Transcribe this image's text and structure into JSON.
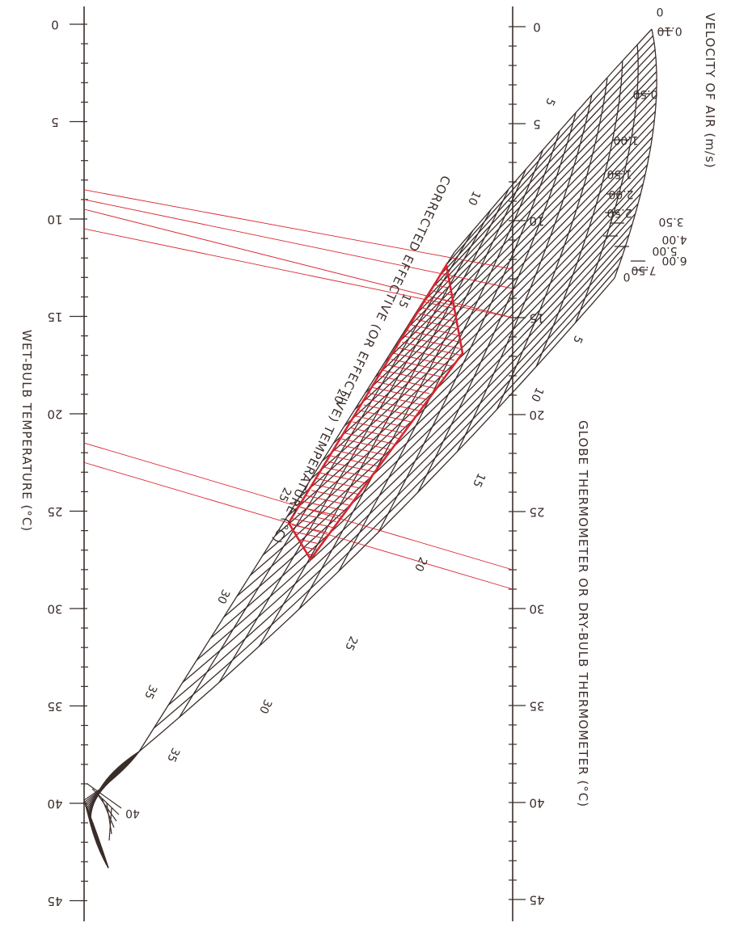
{
  "chart_data": {
    "type": "nomogram",
    "orientation": "rotated 90°",
    "wet_bulb_axis": {
      "label": "WET-BULB TEMPERATURE (°C)",
      "range": [
        0,
        45
      ],
      "major_ticks": [
        "0",
        "5",
        "10",
        "15",
        "20",
        "25",
        "30",
        "35",
        "40",
        "45"
      ]
    },
    "globe_axis": {
      "label": "GLOBE THERMOMETER OR DRY-BULB THERMOMETER (°C)",
      "range": [
        0,
        45
      ],
      "major_ticks": [
        "0",
        "5",
        "10",
        "15",
        "20",
        "25",
        "30",
        "35",
        "40",
        "45"
      ]
    },
    "velocity_scale": {
      "label": "VELOCITY OF AIR (m/s)",
      "values": [
        "0.10",
        "0.50",
        "1.00",
        "1.50",
        "2.00",
        "2.50",
        "3.50",
        "4.00",
        "5.00",
        "6.00",
        "7.50"
      ],
      "end_labels": [
        "0",
        "0"
      ]
    },
    "effective_temperature_scale": {
      "label": "CORRECTED EFFECTIVE (OR EFFECTIVE) TEMPERATURE (°C)",
      "upper_edge_labels": [
        "5",
        "10",
        "15",
        "20",
        "25",
        "30",
        "35",
        "40"
      ],
      "lower_edge_labels": [
        "5",
        "10",
        "15",
        "20",
        "25",
        "30",
        "35",
        "40"
      ]
    },
    "comfort_zone": {
      "color": "#d9252f",
      "wet_bulb_lines": [
        8.5,
        9.0,
        9.5,
        10.5,
        21.5,
        22.5
      ],
      "globe_lines": [
        12.5,
        13.5,
        15.0,
        28.0,
        29.0
      ]
    },
    "colors": {
      "ink": "#3a2e2b",
      "highlight": "#d9252f",
      "background": "#ffffff"
    }
  }
}
